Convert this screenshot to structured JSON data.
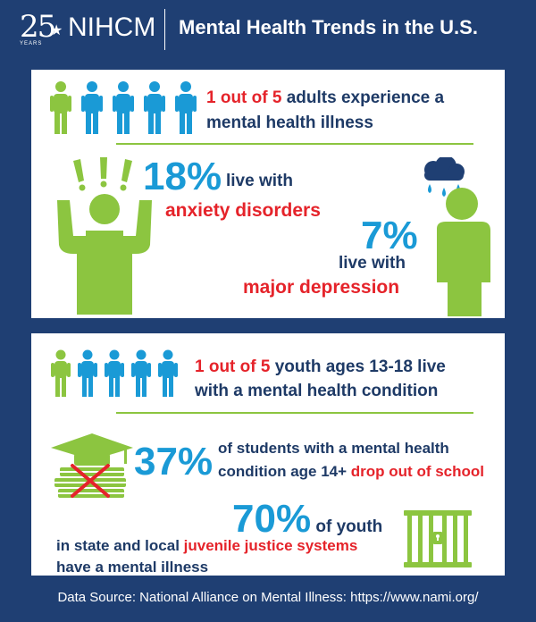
{
  "header": {
    "logo_number": "25",
    "logo_years": "YEARS",
    "logo_text": "NIHCM",
    "title": "Mental Health Trends in the U.S."
  },
  "adults": {
    "stat_red": "1 out of 5",
    "stat_rest1": " adults experience a",
    "stat_rest2": "mental health illness",
    "anxiety_pct": "18%",
    "anxiety_line1": "live with",
    "anxiety_line2": "anxiety disorders",
    "depression_pct": "7%",
    "depression_line1": "live with",
    "depression_line2": "major depression"
  },
  "youth": {
    "stat_red": "1 out of 5",
    "stat_rest1": " youth ages 13-18 live",
    "stat_rest2": "with a mental health condition",
    "dropout_pct": "37%",
    "dropout_line1": "of students with a mental health",
    "dropout_line2a": "condition age 14+ ",
    "dropout_line2b": "drop out of school",
    "justice_pct": "70%",
    "justice_after_pct": " of youth",
    "justice_line1a": "in state and local ",
    "justice_line1b": "juvenile justice systems",
    "justice_line2": "have a mental illness"
  },
  "footer": {
    "source": "Data Source: National Alliance on Mental Illness: https://www.nami.org/"
  },
  "colors": {
    "navy": "#1f3f73",
    "green": "#8cc540",
    "blue": "#1a9ad6",
    "red": "#e5232a",
    "dark_text": "#1e3a66"
  }
}
